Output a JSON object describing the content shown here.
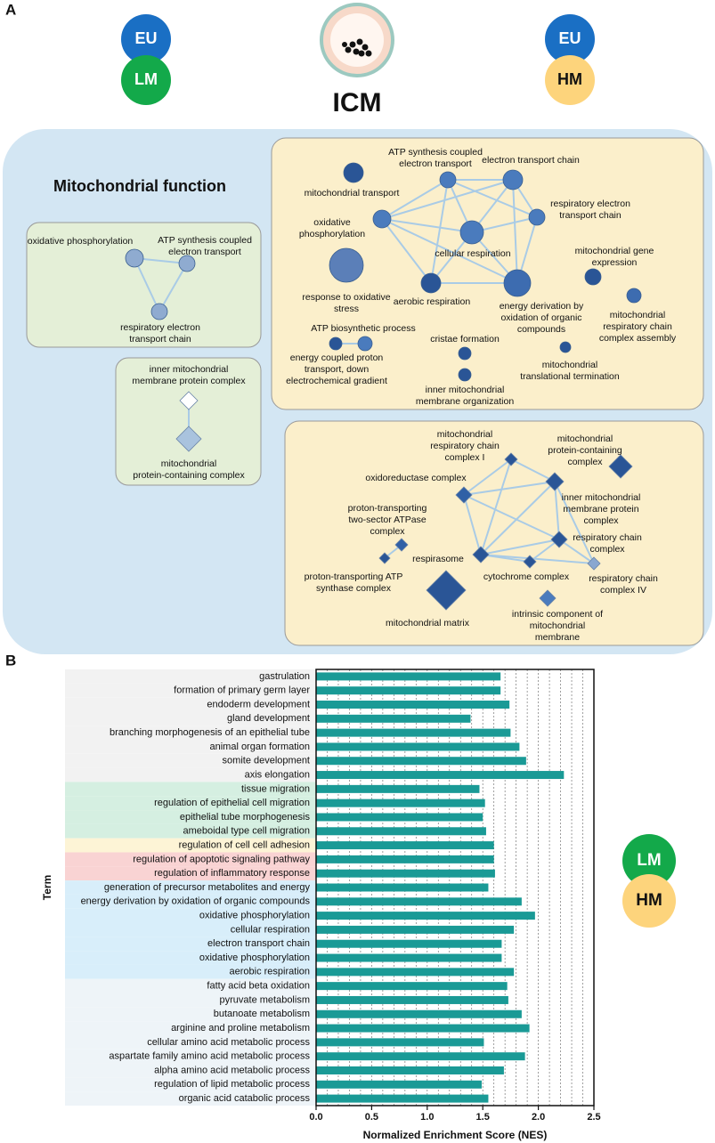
{
  "panel_a": {
    "letter": "A",
    "badges": [
      "EU",
      "LM",
      "EU",
      "HM"
    ],
    "center_label": "ICM",
    "section_title": "Mitochondrial function",
    "nodes": [
      {
        "label": [
          "oxidative phosphorylation"
        ]
      },
      {
        "label": [
          "ATP synthesis coupled",
          "electron transport"
        ]
      },
      {
        "label": [
          "respiratory electron",
          "transport chain"
        ]
      },
      {
        "label": [
          "inner mitochondrial",
          "membrane protein complex"
        ]
      },
      {
        "label": [
          "mitochondrial",
          "protein-containing complex"
        ]
      },
      {
        "label": [
          "mitochondrial transport"
        ]
      },
      {
        "label": [
          "ATP synthesis coupled",
          "electron transport"
        ]
      },
      {
        "label": [
          "electron transport chain"
        ]
      },
      {
        "label": [
          "respiratory electron",
          "transport chain"
        ]
      },
      {
        "label": [
          "oxidative",
          "phosphorylation"
        ]
      },
      {
        "label": [
          "cellular respiration"
        ]
      },
      {
        "label": [
          "response to oxidative",
          "stress"
        ]
      },
      {
        "label": [
          "aerobic respiration"
        ]
      },
      {
        "label": [
          "energy derivation by",
          "oxidation of organic",
          "compounds"
        ]
      },
      {
        "label": [
          "mitochondrial gene",
          "expression"
        ]
      },
      {
        "label": [
          "mitochondrial",
          "respiratory chain",
          "complex assembly"
        ]
      },
      {
        "label": [
          "ATP biosynthetic process"
        ]
      },
      {
        "label": [
          "energy coupled proton",
          "transport, down",
          "electrochemical gradient"
        ]
      },
      {
        "label": [
          "cristae formation"
        ]
      },
      {
        "label": [
          "inner mitochondrial",
          "membrane organization"
        ]
      },
      {
        "label": [
          "mitochondrial",
          "translational termination"
        ]
      },
      {
        "label": [
          "mitochondrial",
          "respiratory chain",
          "complex I"
        ]
      },
      {
        "label": [
          "mitochondrial",
          "protein-containing",
          "complex"
        ]
      },
      {
        "label": [
          "oxidoreductase complex"
        ]
      },
      {
        "label": [
          "inner mitochondrial",
          "membrane protein",
          "complex"
        ]
      },
      {
        "label": [
          "proton-transporting",
          "two-sector ATPase",
          "complex"
        ]
      },
      {
        "label": [
          "respirasome"
        ]
      },
      {
        "label": [
          "respiratory chain",
          "complex"
        ]
      },
      {
        "label": [
          "proton-transporting ATP",
          "synthase complex"
        ]
      },
      {
        "label": [
          "cytochrome complex"
        ]
      },
      {
        "label": [
          "respiratory chain",
          "complex IV"
        ]
      },
      {
        "label": [
          "mitochondrial matrix"
        ]
      },
      {
        "label": [
          "intrinsic component of",
          "mitochondrial",
          "membrane"
        ]
      }
    ]
  },
  "panel_b": {
    "letter": "B",
    "badges": [
      "LM",
      "HM"
    ]
  },
  "chart_data": {
    "type": "bar",
    "orientation": "horizontal",
    "x_label": "Normalized Enrichment Score (NES)",
    "y_label": "Term",
    "categories": [
      "gastrulation",
      "formation of primary germ layer",
      "endoderm development",
      "gland development",
      "branching morphogenesis of an epithelial tube",
      "animal organ formation",
      "somite development",
      "axis elongation",
      "tissue migration",
      "regulation of epithelial cell migration",
      "epithelial tube morphogenesis",
      "ameboidal type cell migration",
      "regulation of cell cell adhesion",
      "regulation of apoptotic signaling pathway",
      "regulation of inflammatory response",
      "generation of precursor metabolites and energy",
      "energy derivation by oxidation of organic compounds",
      "oxidative phosphorylation",
      "cellular respiration",
      "electron transport chain",
      "oxidative phosphorylation",
      "aerobic respiration",
      "fatty acid beta oxidation",
      "pyruvate metabolism",
      "butanoate metabolism",
      "arginine and proline metabolism",
      "cellular amino acid metabolic process",
      "aspartate family amino acid metabolic process",
      "alpha amino acid metabolic process",
      "regulation of lipid metabolic process",
      "organic acid catabolic process"
    ],
    "values": [
      1.66,
      1.66,
      1.74,
      1.39,
      1.75,
      1.83,
      1.89,
      2.23,
      1.47,
      1.52,
      1.5,
      1.53,
      1.6,
      1.6,
      1.61,
      1.55,
      1.85,
      1.97,
      1.78,
      1.67,
      1.67,
      1.78,
      1.72,
      1.73,
      1.85,
      1.92,
      1.51,
      1.88,
      1.69,
      1.49,
      1.55
    ],
    "band_colors": [
      "#f2f2f2",
      "#f2f2f2",
      "#f2f2f2",
      "#f2f2f2",
      "#f2f2f2",
      "#f2f2f2",
      "#f2f2f2",
      "#f2f2f2",
      "#d5efe1",
      "#d5efe1",
      "#d5efe1",
      "#d5efe1",
      "#fdf4d6",
      "#f9d3d3",
      "#f9d3d3",
      "#d8eefa",
      "#d8eefa",
      "#d8eefa",
      "#d8eefa",
      "#d8eefa",
      "#d8eefa",
      "#d8eefa",
      "#eef4f8",
      "#eef4f8",
      "#eef4f8",
      "#eef4f8",
      "#eef4f8",
      "#eef4f8",
      "#eef4f8",
      "#eef4f8",
      "#eef4f8"
    ],
    "color": "#1a9a96",
    "xlim": [
      0,
      2.5
    ],
    "xticks": [
      {
        "value": 0,
        "label": "0.0"
      },
      0.5,
      {
        "value": 1,
        "label": "1.0"
      },
      1.5,
      {
        "value": 2,
        "label": "2.0"
      },
      2.5
    ],
    "grid_lines": [
      0.1,
      0.2,
      0.3,
      0.4,
      0.5,
      0.6,
      0.7,
      0.8,
      0.9,
      1,
      1.1,
      1.2,
      1.3,
      1.4,
      1.5,
      1.6,
      1.7,
      1.8,
      1.9,
      2,
      2.1,
      2.2,
      2.3,
      2.4
    ],
    "grid": true
  }
}
